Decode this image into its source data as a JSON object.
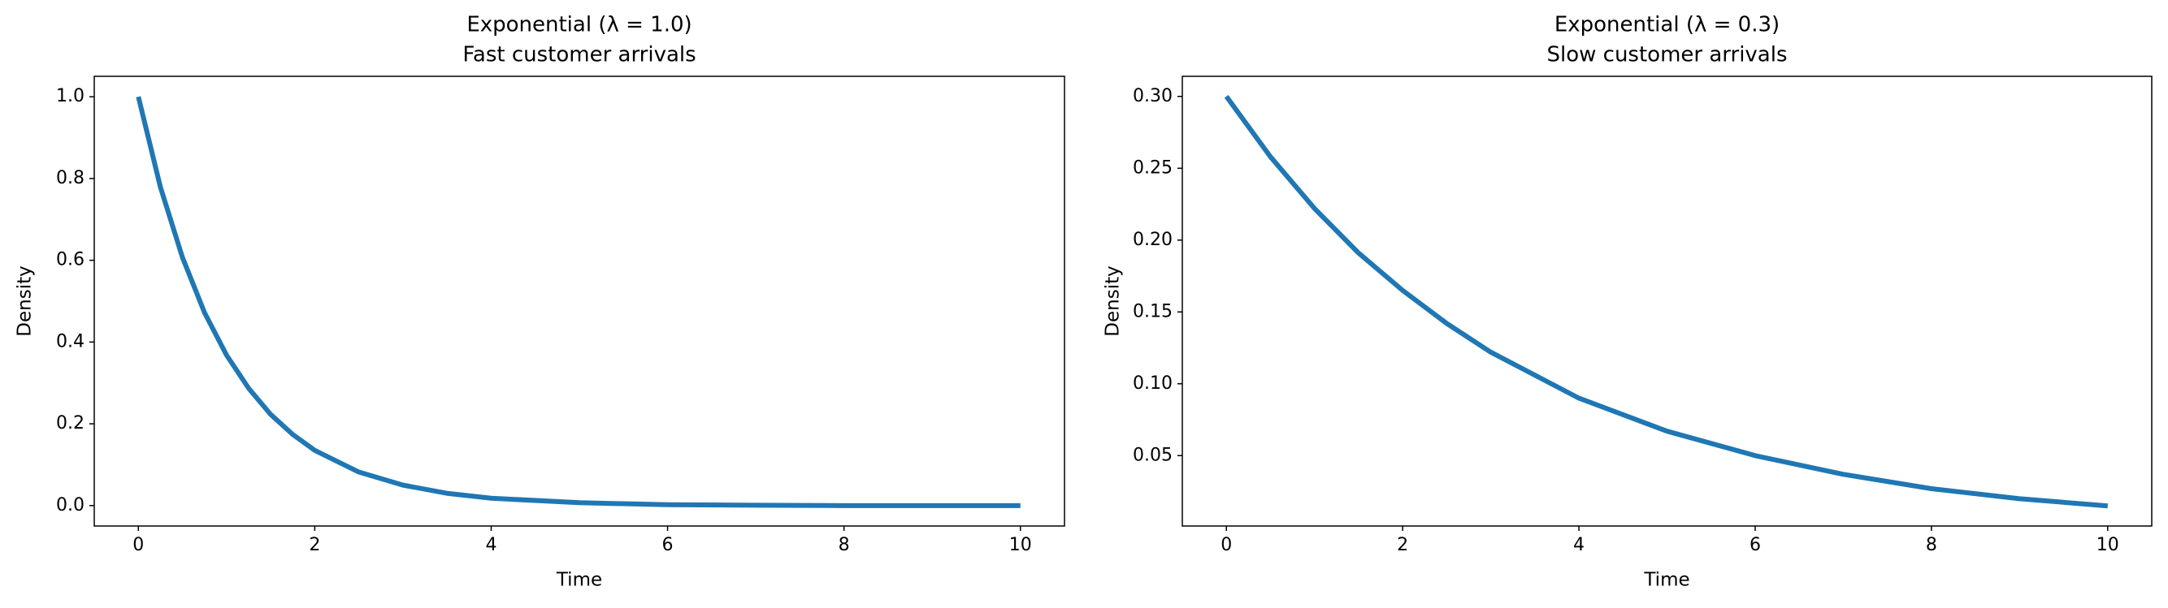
{
  "chart_data": [
    {
      "type": "line",
      "title": "Exponential (λ = 1.0)",
      "subtitle": "Fast customer arrivals",
      "x_label": "Time",
      "y_label": "Density",
      "x": [
        0,
        0.25,
        0.5,
        0.75,
        1,
        1.25,
        1.5,
        1.75,
        2,
        2.5,
        3,
        3.5,
        4,
        5,
        6,
        7,
        8,
        9,
        10
      ],
      "series": [
        {
          "color": "#1f77b4",
          "values": [
            1,
            0.779,
            0.607,
            0.472,
            0.368,
            0.287,
            0.223,
            0.174,
            0.135,
            0.082,
            0.05,
            0.03,
            0.018,
            0.007,
            0.002,
            0.001,
            0,
            0,
            0
          ]
        }
      ],
      "xlim": [
        -0.5,
        10.5
      ],
      "ylim": [
        -0.05,
        1.05
      ],
      "xticks": [
        0,
        2,
        4,
        6,
        8,
        10
      ],
      "yticks": [
        {
          "value": 0,
          "label": "0.0"
        },
        0.2,
        0.4,
        0.6,
        0.8,
        {
          "value": 1,
          "label": "1.0"
        }
      ]
    },
    {
      "type": "line",
      "title": "Exponential (λ = 0.3)",
      "subtitle": "Slow customer arrivals",
      "x_label": "Time",
      "y_label": "Density",
      "x": [
        0,
        0.5,
        1,
        1.5,
        2,
        2.5,
        3,
        4,
        5,
        6,
        7,
        8,
        9,
        10
      ],
      "series": [
        {
          "color": "#1f77b4",
          "values": [
            0.3,
            0.258,
            0.222,
            0.191,
            0.165,
            0.142,
            0.122,
            0.09,
            0.067,
            0.05,
            0.037,
            0.027,
            0.02,
            0.015
          ]
        }
      ],
      "xlim": [
        -0.5,
        10.5
      ],
      "ylim": [
        0.001,
        0.314
      ],
      "xticks": [
        0,
        2,
        4,
        6,
        8,
        10
      ],
      "yticks": [
        0.05,
        {
          "value": 0.1,
          "label": "0.10"
        },
        0.15,
        {
          "value": 0.2,
          "label": "0.20"
        },
        0.25,
        {
          "value": 0.3,
          "label": "0.30"
        }
      ]
    }
  ]
}
